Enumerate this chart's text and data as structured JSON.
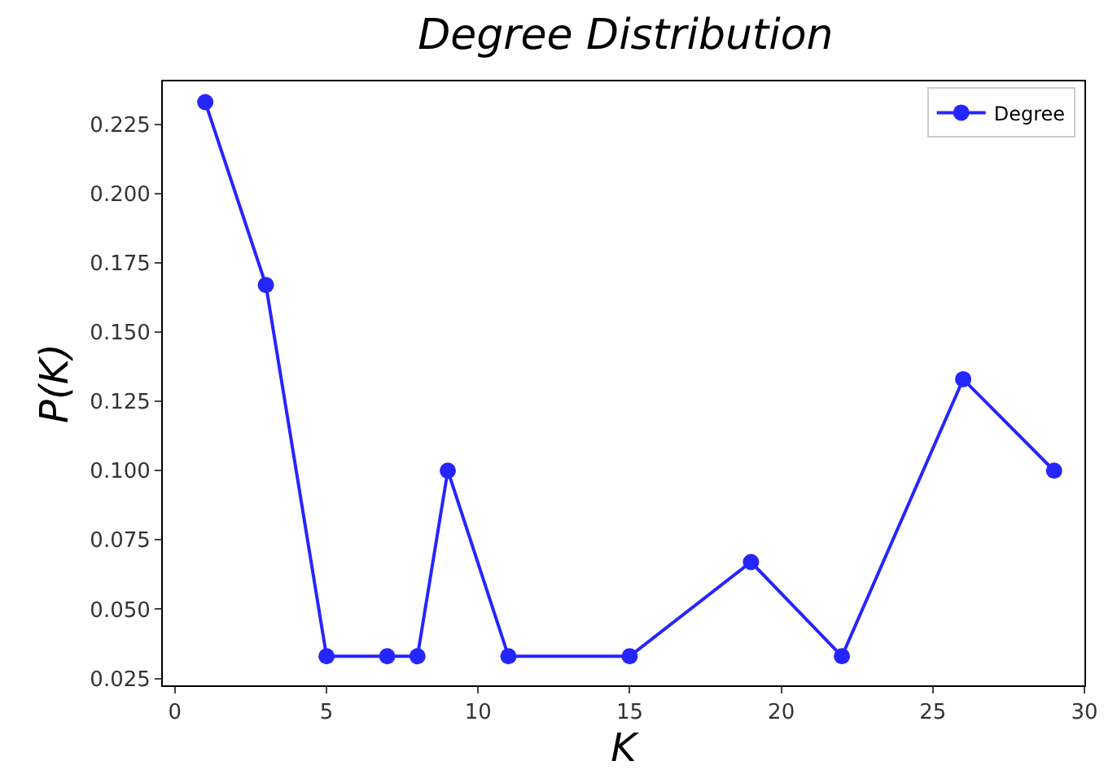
{
  "chart_data": {
    "type": "line",
    "title": "Degree Distribution",
    "xlabel": "K",
    "ylabel": "P(K)",
    "x": [
      1,
      3,
      5,
      7,
      8,
      9,
      11,
      15,
      19,
      22,
      26,
      29
    ],
    "series": [
      {
        "name": "Degree",
        "color": "#0000ff",
        "values": [
          0.233,
          0.167,
          0.033,
          0.033,
          0.033,
          0.1,
          0.033,
          0.033,
          0.067,
          0.033,
          0.133,
          0.1
        ]
      }
    ],
    "xlim": [
      -0.4,
      30
    ],
    "xticks": [
      0,
      5,
      10,
      15,
      20,
      25,
      30
    ],
    "ylim": [
      0.0225,
      0.2405
    ],
    "yticks": [
      0.025,
      {
        "value": 0.05,
        "label": "0.050"
      },
      0.075,
      {
        "value": 0.1,
        "label": "0.100"
      },
      0.125,
      {
        "value": 0.15,
        "label": "0.150"
      },
      0.175,
      {
        "value": 0.2,
        "label": "0.200"
      },
      0.225
    ],
    "marker": "circle",
    "line_style": "solid",
    "legend": "top right"
  }
}
